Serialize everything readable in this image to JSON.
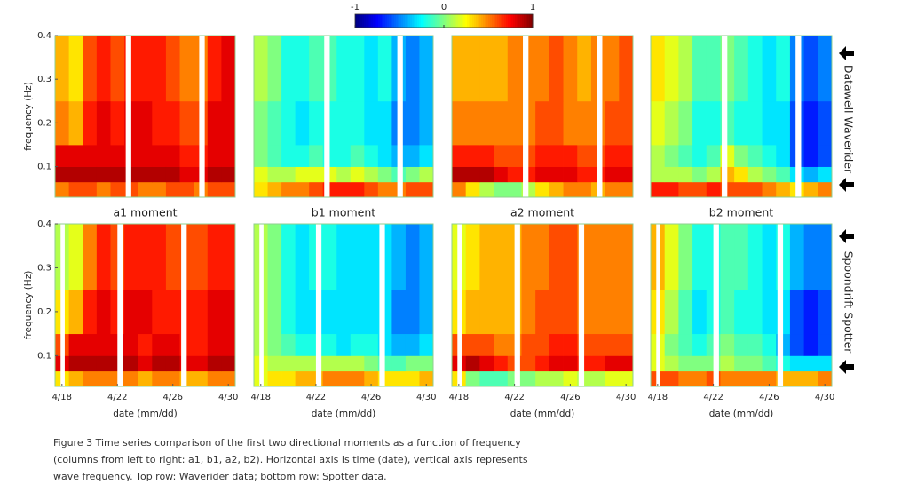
{
  "colorbar": {
    "colormap": "jet",
    "clim": [
      -1,
      1
    ],
    "ticks": [
      -1,
      0,
      1
    ]
  },
  "row_labels": [
    "Datawell Waverider",
    "Spoondrift Spotter"
  ],
  "caption": "Figure 3 Time series comparison of the first two directional moments as a function of frequency (columns from left to right: a1, b1, a2, b2). Horizontal axis is time (date), vertical axis represents wave frequency. Top row: Waverider data; bottom row: Spotter data.",
  "chart_data": [
    {
      "type": "heatmap",
      "title": "a1 moment",
      "ylabel": "frequency (Hz)",
      "xlim": [
        17.5,
        30.5
      ],
      "ylim": [
        0.03,
        0.4
      ],
      "yticks": [
        0.1,
        0.2,
        0.3,
        0.4
      ],
      "x": [
        18,
        19,
        20,
        21,
        22,
        23,
        24,
        25,
        26,
        27,
        28,
        29,
        30
      ],
      "y_edges": [
        0.03,
        0.065,
        0.1,
        0.15,
        0.25,
        0.4
      ],
      "gaps": [
        [
          22.6,
          23.0
        ],
        [
          27.9,
          28.3
        ]
      ],
      "values": [
        [
          0.5,
          0.6,
          0.6,
          0.5,
          0.6,
          0.6,
          0.5,
          0.5,
          0.6,
          0.6,
          0.5,
          0.6,
          0.6
        ],
        [
          0.9,
          0.9,
          0.9,
          0.9,
          0.9,
          0.9,
          0.9,
          0.9,
          0.9,
          0.8,
          0.8,
          0.9,
          0.9
        ],
        [
          0.8,
          0.8,
          0.8,
          0.8,
          0.8,
          0.8,
          0.8,
          0.8,
          0.8,
          0.7,
          0.7,
          0.8,
          0.8
        ],
        [
          0.5,
          0.4,
          0.7,
          0.8,
          0.7,
          0.8,
          0.8,
          0.7,
          0.7,
          0.6,
          0.6,
          0.8,
          0.8
        ],
        [
          0.4,
          0.3,
          0.6,
          0.7,
          0.6,
          0.7,
          0.7,
          0.7,
          0.6,
          0.5,
          0.5,
          0.7,
          0.8
        ]
      ]
    },
    {
      "type": "heatmap",
      "title": "b1 moment",
      "xlim": [
        17.5,
        30.5
      ],
      "ylim": [
        0.03,
        0.4
      ],
      "x": [
        18,
        19,
        20,
        21,
        22,
        23,
        24,
        25,
        26,
        27,
        28,
        29,
        30
      ],
      "y_edges": [
        0.03,
        0.065,
        0.1,
        0.15,
        0.25,
        0.4
      ],
      "gaps": [
        [
          22.6,
          23.0
        ],
        [
          27.9,
          28.3
        ]
      ],
      "values": [
        [
          0.3,
          0.4,
          0.5,
          0.5,
          0.6,
          0.7,
          0.7,
          0.7,
          0.6,
          0.5,
          0.5,
          0.6,
          0.6
        ],
        [
          0.2,
          0.1,
          0.1,
          0.2,
          0.2,
          0.2,
          0.1,
          0.2,
          0.1,
          0.0,
          -0.1,
          0.0,
          0.1
        ],
        [
          0.0,
          -0.1,
          -0.2,
          -0.2,
          -0.1,
          -0.2,
          -0.2,
          -0.1,
          -0.2,
          -0.3,
          -0.4,
          -0.4,
          -0.3
        ],
        [
          0.0,
          -0.1,
          -0.2,
          -0.3,
          -0.2,
          -0.2,
          -0.2,
          -0.2,
          -0.3,
          -0.3,
          -0.5,
          -0.5,
          -0.4
        ],
        [
          0.1,
          0.0,
          -0.2,
          -0.2,
          -0.1,
          -0.1,
          -0.2,
          -0.2,
          -0.3,
          -0.2,
          -0.4,
          -0.5,
          -0.4
        ]
      ]
    },
    {
      "type": "heatmap",
      "title": "a2 moment",
      "xlim": [
        17.5,
        30.5
      ],
      "ylim": [
        0.03,
        0.4
      ],
      "x": [
        18,
        19,
        20,
        21,
        22,
        23,
        24,
        25,
        26,
        27,
        28,
        29,
        30
      ],
      "y_edges": [
        0.03,
        0.065,
        0.1,
        0.15,
        0.25,
        0.4
      ],
      "gaps": [
        [
          22.6,
          23.0
        ],
        [
          27.9,
          28.3
        ]
      ],
      "values": [
        [
          0.5,
          0.3,
          0.1,
          0.0,
          0.0,
          0.1,
          0.3,
          0.4,
          0.5,
          0.5,
          0.4,
          0.5,
          0.5
        ],
        [
          0.9,
          0.9,
          0.9,
          0.8,
          0.7,
          0.7,
          0.8,
          0.8,
          0.8,
          0.7,
          0.7,
          0.8,
          0.8
        ],
        [
          0.7,
          0.7,
          0.7,
          0.6,
          0.6,
          0.6,
          0.7,
          0.7,
          0.7,
          0.6,
          0.6,
          0.7,
          0.7
        ],
        [
          0.5,
          0.5,
          0.5,
          0.5,
          0.5,
          0.5,
          0.6,
          0.6,
          0.5,
          0.5,
          0.5,
          0.6,
          0.6
        ],
        [
          0.4,
          0.4,
          0.4,
          0.4,
          0.5,
          0.5,
          0.5,
          0.6,
          0.5,
          0.4,
          0.5,
          0.5,
          0.6
        ]
      ]
    },
    {
      "type": "heatmap",
      "title": "b2 moment",
      "xlim": [
        17.5,
        30.5
      ],
      "ylim": [
        0.03,
        0.4
      ],
      "x": [
        18,
        19,
        20,
        21,
        22,
        23,
        24,
        25,
        26,
        27,
        28,
        29,
        30
      ],
      "y_edges": [
        0.03,
        0.065,
        0.1,
        0.15,
        0.25,
        0.4
      ],
      "gaps": [
        [
          22.6,
          23.0
        ],
        [
          27.9,
          28.3
        ]
      ],
      "values": [
        [
          0.7,
          0.7,
          0.6,
          0.6,
          0.7,
          0.6,
          0.6,
          0.6,
          0.5,
          0.4,
          0.3,
          0.4,
          0.5
        ],
        [
          0.1,
          0.1,
          0.1,
          0.0,
          0.1,
          0.4,
          0.3,
          0.1,
          0.0,
          -0.1,
          -0.3,
          -0.4,
          -0.3
        ],
        [
          0.1,
          0.0,
          -0.1,
          -0.2,
          -0.1,
          0.2,
          0.0,
          -0.1,
          -0.2,
          -0.3,
          -0.6,
          -0.7,
          -0.6
        ],
        [
          0.2,
          0.1,
          0.0,
          -0.2,
          -0.2,
          -0.1,
          -0.2,
          -0.2,
          -0.3,
          -0.3,
          -0.6,
          -0.7,
          -0.6
        ],
        [
          0.3,
          0.2,
          0.1,
          -0.1,
          -0.1,
          0.0,
          -0.1,
          -0.2,
          -0.3,
          -0.2,
          -0.5,
          -0.6,
          -0.5
        ]
      ]
    },
    {
      "type": "heatmap",
      "xlabel": "date (mm/dd)",
      "ylabel": "frequency (Hz)",
      "xlim": [
        17.5,
        30.5
      ],
      "ylim": [
        0.03,
        0.4
      ],
      "yticks": [
        0.1,
        0.2,
        0.3,
        0.4
      ],
      "xticks": [
        {
          "value": 18,
          "label": "4/18"
        },
        {
          "value": 22,
          "label": "4/22"
        },
        {
          "value": 26,
          "label": "4/26"
        },
        {
          "value": 30,
          "label": "4/30"
        }
      ],
      "x": [
        18,
        19,
        20,
        21,
        22,
        23,
        24,
        25,
        26,
        27,
        28,
        29,
        30
      ],
      "y_edges": [
        0.03,
        0.065,
        0.1,
        0.15,
        0.25,
        0.4
      ],
      "gaps": [
        [
          17.9,
          18.2
        ],
        [
          22.0,
          22.4
        ],
        [
          26.6,
          27.0
        ]
      ],
      "values": [
        [
          0.3,
          0.4,
          0.5,
          0.5,
          0.5,
          0.5,
          0.4,
          0.5,
          0.5,
          0.4,
          0.4,
          0.5,
          0.5
        ],
        [
          0.8,
          0.9,
          0.9,
          0.9,
          0.9,
          0.9,
          0.8,
          0.9,
          0.9,
          0.8,
          0.8,
          0.9,
          0.9
        ],
        [
          0.6,
          0.8,
          0.8,
          0.8,
          0.8,
          0.8,
          0.7,
          0.8,
          0.8,
          0.7,
          0.7,
          0.8,
          0.8
        ],
        [
          0.3,
          0.4,
          0.7,
          0.8,
          0.7,
          0.8,
          0.8,
          0.7,
          0.7,
          0.7,
          0.7,
          0.8,
          0.8
        ],
        [
          0.1,
          0.2,
          0.5,
          0.7,
          0.6,
          0.7,
          0.7,
          0.7,
          0.6,
          0.6,
          0.6,
          0.7,
          0.7
        ]
      ]
    },
    {
      "type": "heatmap",
      "xlabel": "date (mm/dd)",
      "xlim": [
        17.5,
        30.5
      ],
      "ylim": [
        0.03,
        0.4
      ],
      "xticks": [
        {
          "value": 18,
          "label": "4/18"
        },
        {
          "value": 22,
          "label": "4/22"
        },
        {
          "value": 26,
          "label": "4/26"
        },
        {
          "value": 30,
          "label": "4/30"
        }
      ],
      "x": [
        18,
        19,
        20,
        21,
        22,
        23,
        24,
        25,
        26,
        27,
        28,
        29,
        30
      ],
      "y_edges": [
        0.03,
        0.065,
        0.1,
        0.15,
        0.25,
        0.4
      ],
      "gaps": [
        [
          17.9,
          18.2
        ],
        [
          22.0,
          22.4
        ],
        [
          26.6,
          27.0
        ]
      ],
      "values": [
        [
          0.2,
          0.3,
          0.3,
          0.4,
          0.4,
          0.5,
          0.5,
          0.5,
          0.4,
          0.3,
          0.3,
          0.3,
          0.4
        ],
        [
          0.2,
          0.1,
          0.1,
          0.1,
          0.1,
          0.1,
          0.1,
          0.1,
          0.0,
          -0.1,
          -0.1,
          0.0,
          0.0
        ],
        [
          0.1,
          0.0,
          -0.1,
          -0.2,
          -0.2,
          -0.2,
          -0.3,
          -0.2,
          -0.2,
          -0.3,
          -0.4,
          -0.4,
          -0.3
        ],
        [
          0.1,
          0.0,
          -0.2,
          -0.3,
          -0.3,
          -0.3,
          -0.3,
          -0.3,
          -0.3,
          -0.3,
          -0.5,
          -0.5,
          -0.4
        ],
        [
          0.1,
          0.0,
          -0.2,
          -0.3,
          -0.2,
          -0.2,
          -0.3,
          -0.3,
          -0.3,
          -0.3,
          -0.4,
          -0.5,
          -0.4
        ]
      ]
    },
    {
      "type": "heatmap",
      "xlabel": "date (mm/dd)",
      "xlim": [
        17.5,
        30.5
      ],
      "ylim": [
        0.03,
        0.4
      ],
      "xticks": [
        {
          "value": 18,
          "label": "4/18"
        },
        {
          "value": 22,
          "label": "4/22"
        },
        {
          "value": 26,
          "label": "4/26"
        },
        {
          "value": 30,
          "label": "4/30"
        }
      ],
      "x": [
        18,
        19,
        20,
        21,
        22,
        23,
        24,
        25,
        26,
        27,
        28,
        29,
        30
      ],
      "y_edges": [
        0.03,
        0.065,
        0.1,
        0.15,
        0.25,
        0.4
      ],
      "gaps": [
        [
          17.9,
          18.2
        ],
        [
          22.0,
          22.4
        ],
        [
          26.6,
          27.0
        ]
      ],
      "values": [
        [
          0.3,
          0.0,
          -0.1,
          -0.1,
          0.0,
          0.0,
          0.1,
          0.1,
          0.2,
          0.1,
          0.1,
          0.2,
          0.2
        ],
        [
          0.8,
          0.9,
          0.8,
          0.7,
          0.6,
          0.6,
          0.7,
          0.8,
          0.8,
          0.7,
          0.7,
          0.8,
          0.8
        ],
        [
          0.6,
          0.6,
          0.6,
          0.5,
          0.5,
          0.6,
          0.6,
          0.7,
          0.7,
          0.6,
          0.6,
          0.6,
          0.6
        ],
        [
          0.3,
          0.4,
          0.4,
          0.4,
          0.4,
          0.5,
          0.6,
          0.6,
          0.6,
          0.5,
          0.5,
          0.5,
          0.5
        ],
        [
          0.2,
          0.3,
          0.4,
          0.4,
          0.4,
          0.5,
          0.5,
          0.6,
          0.6,
          0.5,
          0.5,
          0.5,
          0.5
        ]
      ]
    },
    {
      "type": "heatmap",
      "xlabel": "date (mm/dd)",
      "xlim": [
        17.5,
        30.5
      ],
      "ylim": [
        0.03,
        0.4
      ],
      "xticks": [
        {
          "value": 18,
          "label": "4/18"
        },
        {
          "value": 22,
          "label": "4/22"
        },
        {
          "value": 26,
          "label": "4/26"
        },
        {
          "value": 30,
          "label": "4/30"
        }
      ],
      "x": [
        18,
        19,
        20,
        21,
        22,
        23,
        24,
        25,
        26,
        27,
        28,
        29,
        30
      ],
      "y_edges": [
        0.03,
        0.065,
        0.1,
        0.15,
        0.25,
        0.4
      ],
      "gaps": [
        [
          17.9,
          18.2
        ],
        [
          22.0,
          22.4
        ],
        [
          26.6,
          27.0
        ]
      ],
      "values": [
        [
          0.6,
          0.6,
          0.5,
          0.5,
          0.6,
          0.5,
          0.5,
          0.5,
          0.5,
          0.4,
          0.4,
          0.4,
          0.5
        ],
        [
          0.2,
          0.1,
          0.0,
          0.0,
          0.0,
          0.1,
          0.0,
          0.0,
          -0.1,
          -0.2,
          -0.3,
          -0.3,
          -0.3
        ],
        [
          0.2,
          0.0,
          -0.1,
          -0.2,
          -0.1,
          0.0,
          -0.1,
          -0.1,
          -0.2,
          -0.4,
          -0.6,
          -0.7,
          -0.6
        ],
        [
          0.3,
          0.1,
          -0.1,
          -0.3,
          -0.2,
          -0.1,
          -0.2,
          -0.2,
          -0.3,
          -0.3,
          -0.6,
          -0.7,
          -0.6
        ],
        [
          0.4,
          0.2,
          0.0,
          -0.2,
          -0.2,
          -0.1,
          -0.1,
          -0.2,
          -0.3,
          -0.2,
          -0.4,
          -0.5,
          -0.5
        ]
      ]
    }
  ]
}
